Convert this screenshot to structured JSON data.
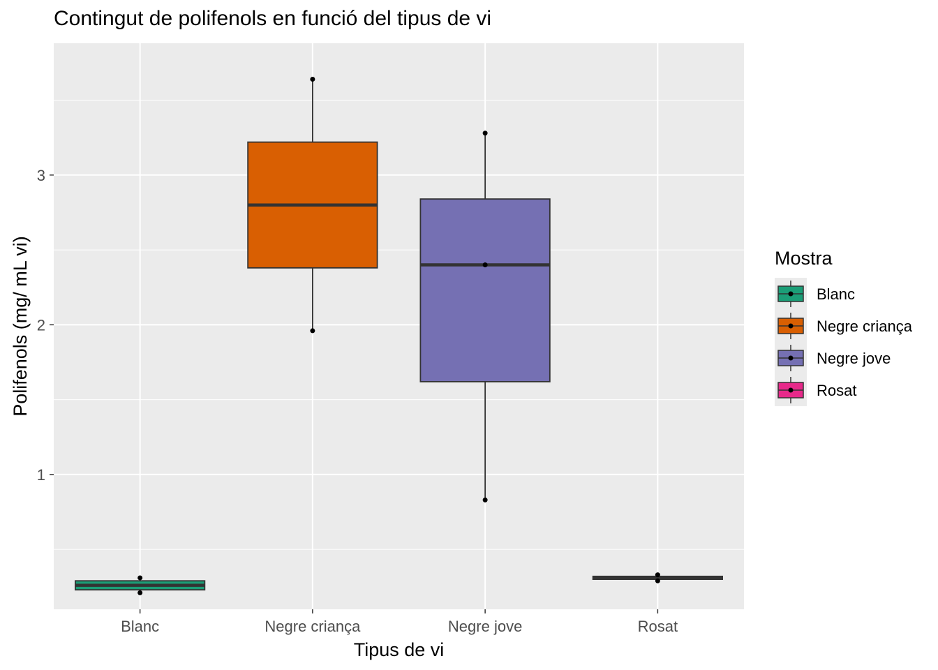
{
  "chart_data": {
    "type": "box",
    "title": "Contingut de polifenols en funció del tipus de vi",
    "xlabel": "Tipus de vi",
    "ylabel": "Polifenols (mg/ mL vi)",
    "ylim": [
      0.1,
      3.88
    ],
    "yticks": [
      1,
      2,
      3
    ],
    "grid": true,
    "legend": {
      "title": "Mostra",
      "placement": "right"
    },
    "categories": [
      "Blanc",
      "Negre criança",
      "Negre jove",
      "Rosat"
    ],
    "colors": [
      "#1b9e77",
      "#d95f02",
      "#7570b3",
      "#e7298a"
    ],
    "series": [
      {
        "name": "Blanc",
        "min": 0.21,
        "q1": 0.23,
        "median": 0.26,
        "q3": 0.29,
        "max": 0.31,
        "points": [
          0.31,
          0.21
        ]
      },
      {
        "name": "Negre criança",
        "min": 1.96,
        "q1": 2.38,
        "median": 2.8,
        "q3": 3.22,
        "max": 3.64,
        "points": [
          3.64,
          1.96
        ]
      },
      {
        "name": "Negre jove",
        "min": 0.83,
        "q1": 1.62,
        "median": 2.4,
        "q3": 2.84,
        "max": 3.28,
        "points": [
          3.28,
          2.4,
          0.83
        ]
      },
      {
        "name": "Rosat",
        "min": 0.29,
        "q1": 0.3,
        "median": 0.31,
        "q3": 0.32,
        "max": 0.33,
        "points": [
          0.33,
          0.29
        ]
      }
    ]
  }
}
